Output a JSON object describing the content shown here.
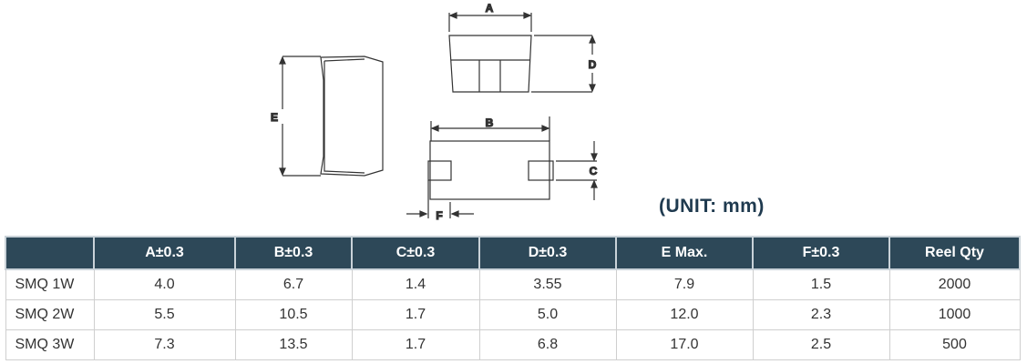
{
  "diagram": {
    "labels": {
      "A": "A",
      "B": "B",
      "C": "C",
      "D": "D",
      "E": "E",
      "F": "F"
    }
  },
  "unit_note": "(UNIT: mm)",
  "table": {
    "headers": [
      "",
      "A±0.3",
      "B±0.3",
      "C±0.3",
      "D±0.3",
      "E Max.",
      "F±0.3",
      "Reel Qty"
    ],
    "rows": [
      [
        "SMQ 1W",
        "4.0",
        "6.7",
        "1.4",
        "3.55",
        "7.9",
        "1.5",
        "2000"
      ],
      [
        "SMQ 2W",
        "5.5",
        "10.5",
        "1.7",
        "5.0",
        "12.0",
        "2.3",
        "1000"
      ],
      [
        "SMQ 3W",
        "7.3",
        "13.5",
        "1.7",
        "6.8",
        "17.0",
        "2.5",
        "500"
      ]
    ]
  },
  "colors": {
    "header_bg": "#2d4858",
    "unit_text": "#1f3a4f"
  }
}
